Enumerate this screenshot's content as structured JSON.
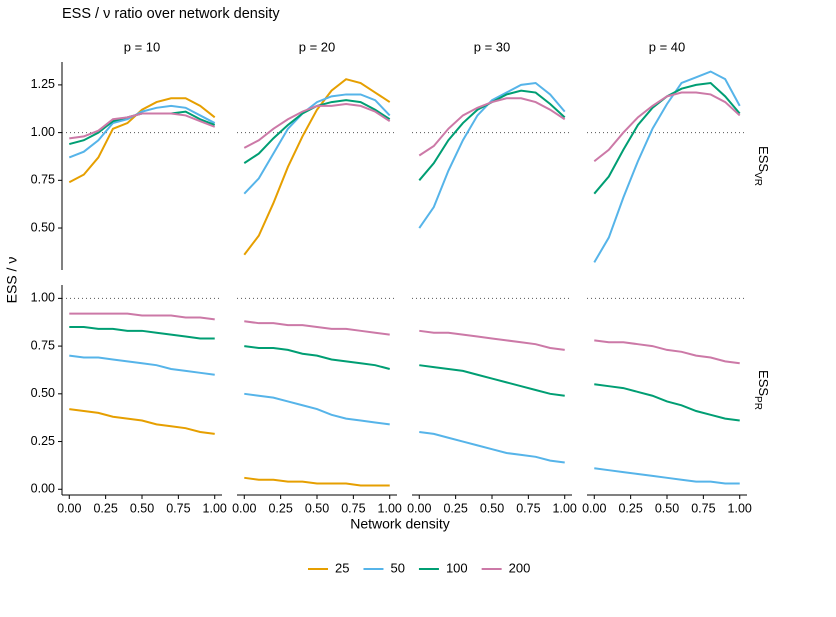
{
  "chart_data": {
    "type": "line",
    "title": "ESS / ν  ratio over network density",
    "xlabel": "Network density",
    "ylabel": "ESS / ν",
    "x": [
      0,
      0.1,
      0.2,
      0.3,
      0.4,
      0.5,
      0.6,
      0.7,
      0.8,
      0.9,
      1
    ],
    "xlim": [
      -0.05,
      1.05
    ],
    "xticks": [
      {
        "value": 0,
        "label": "0.00"
      },
      {
        "value": 0.25,
        "label": "0.25"
      },
      {
        "value": 0.5,
        "label": "0.50"
      },
      {
        "value": 0.75,
        "label": "0.75"
      },
      {
        "value": 1,
        "label": "1.00"
      }
    ],
    "reference_line": 1,
    "columns": [
      "p = 10",
      "p = 20",
      "p = 30",
      "p = 40"
    ],
    "rows": [
      {
        "label": "ESS",
        "sub": "VR",
        "ylim": [
          0.28,
          1.37
        ],
        "yticks": [
          {
            "value": 0.5,
            "label": "0.50"
          },
          {
            "value": 0.75,
            "label": "0.75"
          },
          {
            "value": 1,
            "label": "1.00"
          },
          {
            "value": 1.25,
            "label": "1.25"
          }
        ]
      },
      {
        "label": "ESS",
        "sub": "PR",
        "ylim": [
          -0.03,
          1.07
        ],
        "yticks": [
          {
            "value": 0,
            "label": "0.00"
          },
          {
            "value": 0.25,
            "label": "0.25"
          },
          {
            "value": 0.5,
            "label": "0.50"
          },
          {
            "value": 0.75,
            "label": "0.75"
          },
          {
            "value": 1,
            "label": "1.00"
          }
        ]
      }
    ],
    "legend": [
      {
        "name": "25",
        "color": "#e69f00"
      },
      {
        "name": "50",
        "color": "#56b4e9"
      },
      {
        "name": "100",
        "color": "#009e73"
      },
      {
        "name": "200",
        "color": "#cc79a7"
      }
    ],
    "panels": [
      {
        "row": 0,
        "column": 0,
        "series": [
          {
            "values": [
              0.74,
              0.78,
              0.87,
              1.02,
              1.05,
              1.12,
              1.16,
              1.18,
              1.18,
              1.14,
              1.08
            ]
          },
          {
            "values": [
              0.87,
              0.9,
              0.96,
              1.05,
              1.07,
              1.11,
              1.13,
              1.14,
              1.13,
              1.09,
              1.05
            ]
          },
          {
            "values": [
              0.94,
              0.96,
              1.0,
              1.06,
              1.08,
              1.1,
              1.1,
              1.1,
              1.11,
              1.07,
              1.04
            ]
          },
          {
            "values": [
              0.97,
              0.98,
              1.01,
              1.07,
              1.08,
              1.1,
              1.1,
              1.1,
              1.09,
              1.06,
              1.03
            ]
          }
        ]
      },
      {
        "row": 0,
        "column": 1,
        "series": [
          {
            "values": [
              0.36,
              0.46,
              0.63,
              0.82,
              0.98,
              1.12,
              1.22,
              1.28,
              1.26,
              1.21,
              1.16
            ]
          },
          {
            "values": [
              0.68,
              0.76,
              0.89,
              1.02,
              1.1,
              1.16,
              1.19,
              1.2,
              1.2,
              1.17,
              1.09
            ]
          },
          {
            "values": [
              0.84,
              0.89,
              0.97,
              1.04,
              1.1,
              1.14,
              1.16,
              1.17,
              1.16,
              1.12,
              1.07
            ]
          },
          {
            "values": [
              0.92,
              0.96,
              1.02,
              1.07,
              1.11,
              1.14,
              1.14,
              1.15,
              1.14,
              1.11,
              1.06
            ]
          }
        ]
      },
      {
        "row": 0,
        "column": 2,
        "series": [
          {
            "values": [
              null,
              null,
              null,
              null,
              null,
              null,
              null,
              null,
              null,
              null,
              null
            ]
          },
          {
            "values": [
              0.5,
              0.61,
              0.8,
              0.96,
              1.09,
              1.17,
              1.21,
              1.25,
              1.26,
              1.2,
              1.11
            ]
          },
          {
            "values": [
              0.75,
              0.84,
              0.96,
              1.05,
              1.12,
              1.16,
              1.2,
              1.22,
              1.21,
              1.15,
              1.08
            ]
          },
          {
            "values": [
              0.88,
              0.93,
              1.02,
              1.09,
              1.13,
              1.16,
              1.18,
              1.18,
              1.16,
              1.12,
              1.07
            ]
          }
        ]
      },
      {
        "row": 0,
        "column": 3,
        "series": [
          {
            "values": [
              null,
              null,
              null,
              null,
              null,
              null,
              null,
              null,
              null,
              null,
              null
            ]
          },
          {
            "values": [
              0.32,
              0.45,
              0.66,
              0.85,
              1.02,
              1.15,
              1.26,
              1.29,
              1.32,
              1.28,
              1.14
            ]
          },
          {
            "values": [
              0.68,
              0.77,
              0.91,
              1.04,
              1.13,
              1.19,
              1.23,
              1.25,
              1.26,
              1.19,
              1.1
            ]
          },
          {
            "values": [
              0.85,
              0.91,
              1.0,
              1.08,
              1.14,
              1.19,
              1.21,
              1.21,
              1.2,
              1.16,
              1.09
            ]
          }
        ]
      },
      {
        "row": 1,
        "column": 0,
        "series": [
          {
            "values": [
              0.42,
              0.41,
              0.4,
              0.38,
              0.37,
              0.36,
              0.34,
              0.33,
              0.32,
              0.3,
              0.29
            ]
          },
          {
            "values": [
              0.7,
              0.69,
              0.69,
              0.68,
              0.67,
              0.66,
              0.65,
              0.63,
              0.62,
              0.61,
              0.6
            ]
          },
          {
            "values": [
              0.85,
              0.85,
              0.84,
              0.84,
              0.83,
              0.83,
              0.82,
              0.81,
              0.8,
              0.79,
              0.79
            ]
          },
          {
            "values": [
              0.92,
              0.92,
              0.92,
              0.92,
              0.92,
              0.91,
              0.91,
              0.91,
              0.9,
              0.9,
              0.89
            ]
          }
        ]
      },
      {
        "row": 1,
        "column": 1,
        "series": [
          {
            "values": [
              0.06,
              0.05,
              0.05,
              0.04,
              0.04,
              0.03,
              0.03,
              0.03,
              0.02,
              0.02,
              0.02
            ]
          },
          {
            "values": [
              0.5,
              0.49,
              0.48,
              0.46,
              0.44,
              0.42,
              0.39,
              0.37,
              0.36,
              0.35,
              0.34
            ]
          },
          {
            "values": [
              0.75,
              0.74,
              0.74,
              0.73,
              0.71,
              0.7,
              0.68,
              0.67,
              0.66,
              0.65,
              0.63
            ]
          },
          {
            "values": [
              0.88,
              0.87,
              0.87,
              0.86,
              0.86,
              0.85,
              0.84,
              0.84,
              0.83,
              0.82,
              0.81
            ]
          }
        ]
      },
      {
        "row": 1,
        "column": 2,
        "series": [
          {
            "values": [
              null,
              null,
              null,
              null,
              null,
              null,
              null,
              null,
              null,
              null,
              null
            ]
          },
          {
            "values": [
              0.3,
              0.29,
              0.27,
              0.25,
              0.23,
              0.21,
              0.19,
              0.18,
              0.17,
              0.15,
              0.14
            ]
          },
          {
            "values": [
              0.65,
              0.64,
              0.63,
              0.62,
              0.6,
              0.58,
              0.56,
              0.54,
              0.52,
              0.5,
              0.49
            ]
          },
          {
            "values": [
              0.83,
              0.82,
              0.82,
              0.81,
              0.8,
              0.79,
              0.78,
              0.77,
              0.76,
              0.74,
              0.73
            ]
          }
        ]
      },
      {
        "row": 1,
        "column": 3,
        "series": [
          {
            "values": [
              null,
              null,
              null,
              null,
              null,
              null,
              null,
              null,
              null,
              null,
              null
            ]
          },
          {
            "values": [
              0.11,
              0.1,
              0.09,
              0.08,
              0.07,
              0.06,
              0.05,
              0.04,
              0.04,
              0.03,
              0.03
            ]
          },
          {
            "values": [
              0.55,
              0.54,
              0.53,
              0.51,
              0.49,
              0.46,
              0.44,
              0.41,
              0.39,
              0.37,
              0.36
            ]
          },
          {
            "values": [
              0.78,
              0.77,
              0.77,
              0.76,
              0.75,
              0.73,
              0.72,
              0.7,
              0.69,
              0.67,
              0.66
            ]
          }
        ]
      }
    ]
  }
}
